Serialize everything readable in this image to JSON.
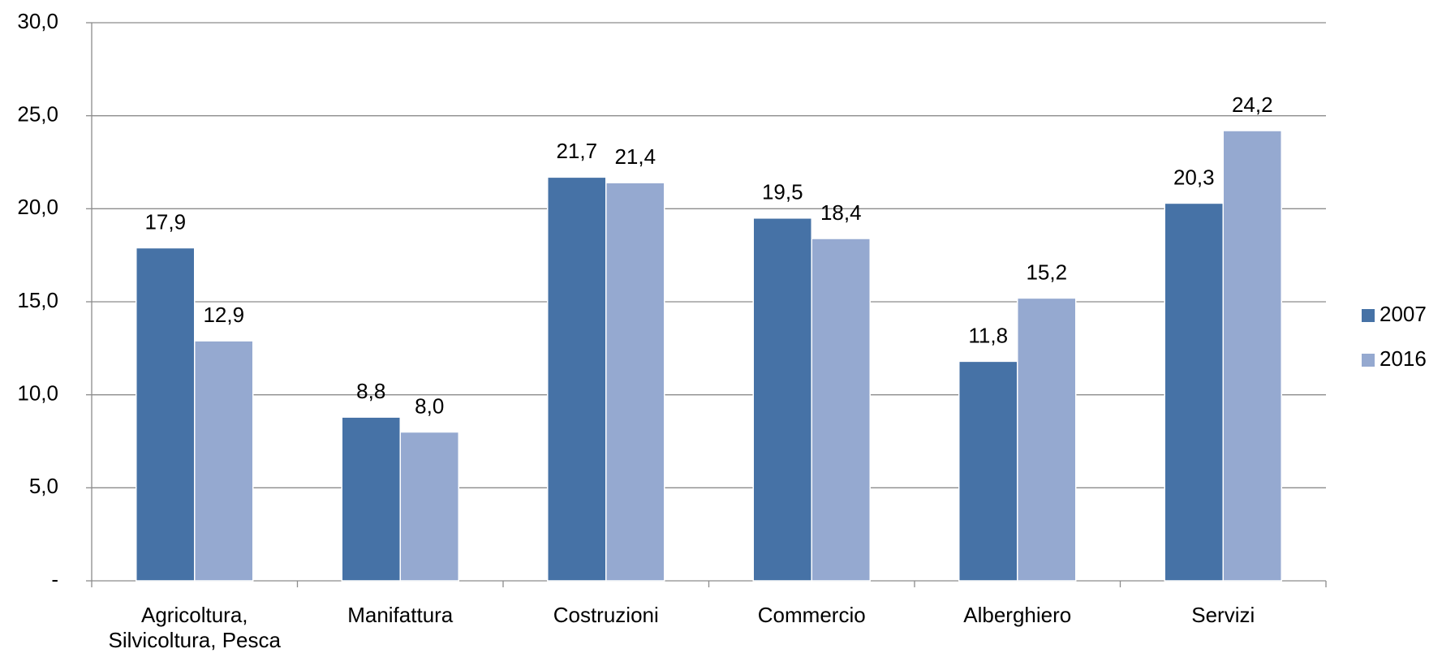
{
  "chart_data": {
    "type": "bar",
    "categories": [
      "Agricoltura, Silvicoltura, Pesca",
      "Manifattura",
      "Costruzioni",
      "Commercio",
      "Alberghiero",
      "Servizi"
    ],
    "series": [
      {
        "name": "2007",
        "color": "#4672a6",
        "values": [
          17.9,
          8.8,
          21.7,
          19.5,
          11.8,
          20.3
        ],
        "value_labels": [
          "17,9",
          "8,8",
          "21,7",
          "19,5",
          "11,8",
          "20,3"
        ]
      },
      {
        "name": "2016",
        "color": "#95a9d0",
        "values": [
          12.9,
          8.0,
          21.4,
          18.4,
          15.2,
          24.2
        ],
        "value_labels": [
          "12,9",
          "8,0",
          "21,4",
          "18,4",
          "15,2",
          "24,2"
        ]
      }
    ],
    "ylim": [
      0,
      30
    ],
    "yticks": [
      {
        "value": 0,
        "label": "-"
      },
      {
        "value": 5,
        "label": "5,0"
      },
      {
        "value": 10,
        "label": "10,0"
      },
      {
        "value": 15,
        "label": "15,0"
      },
      {
        "value": 20,
        "label": "20,0"
      },
      {
        "value": 25,
        "label": "25,0"
      },
      {
        "value": 30,
        "label": "30,0"
      }
    ],
    "grid": true,
    "legend": "right"
  }
}
